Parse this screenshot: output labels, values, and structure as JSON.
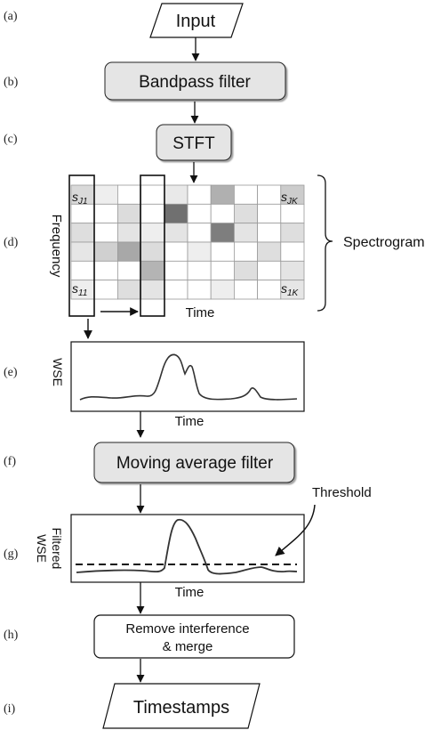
{
  "step_labels": [
    "(a)",
    "(b)",
    "(c)",
    "(d)",
    "(e)",
    "(f)",
    "(g)",
    "(h)",
    "(i)"
  ],
  "blocks": {
    "input": "Input",
    "bandpass": "Bandpass filter",
    "stft": "STFT",
    "moving_average": "Moving average filter",
    "remove_line1": "Remove interference",
    "remove_line2": "& merge",
    "timestamps": "Timestamps"
  },
  "spectrogram": {
    "label": "Spectrogram",
    "y_axis": "Frequency",
    "x_axis": "Time",
    "corner_top_left": "s",
    "corner_top_left_sub": "J1",
    "corner_top_right": "s",
    "corner_top_right_sub": "JK",
    "corner_bottom_left": "s",
    "corner_bottom_left_sub": "11",
    "corner_bottom_right": "s",
    "corner_bottom_right_sub": "1K",
    "rows": 6,
    "cols": 10,
    "cell_shades": [
      [
        "#d9d9d9",
        "#eeeeee",
        "#ffffff",
        "#ffffff",
        "#e9e9e9",
        "#ffffff",
        "#b0b0b0",
        "#ffffff",
        "#ffffff",
        "#cccccc"
      ],
      [
        "#ffffff",
        "#ffffff",
        "#dcdcdc",
        "#ffffff",
        "#707070",
        "#ffffff",
        "#ffffff",
        "#dedede",
        "#ffffff",
        "#ffffff"
      ],
      [
        "#dedede",
        "#ffffff",
        "#e4e4e4",
        "#eeeeee",
        "#e4e4e4",
        "#ffffff",
        "#7e7e7e",
        "#e4e4e4",
        "#ffffff",
        "#dedede"
      ],
      [
        "#e6e6e6",
        "#d0d0d0",
        "#a8a8a8",
        "#dcdcdc",
        "#ffffff",
        "#eeeeee",
        "#ffffff",
        "#ffffff",
        "#dedede",
        "#ffffff"
      ],
      [
        "#ffffff",
        "#ffffff",
        "#ffffff",
        "#b4b4b4",
        "#ffffff",
        "#ffffff",
        "#ffffff",
        "#dedede",
        "#ffffff",
        "#e4e4e4"
      ],
      [
        "#eeeeee",
        "#ffffff",
        "#dedede",
        "#e4e4e4",
        "#ffffff",
        "#ffffff",
        "#eeeeee",
        "#ffffff",
        "#ffffff",
        "#e6e6e6"
      ]
    ]
  },
  "wse_plot": {
    "y_label": "WSE",
    "x_label": "Time"
  },
  "filtered_plot": {
    "y_label_line1": "Filtered",
    "y_label_line2": "WSE",
    "x_label": "Time",
    "threshold_label": "Threshold"
  }
}
